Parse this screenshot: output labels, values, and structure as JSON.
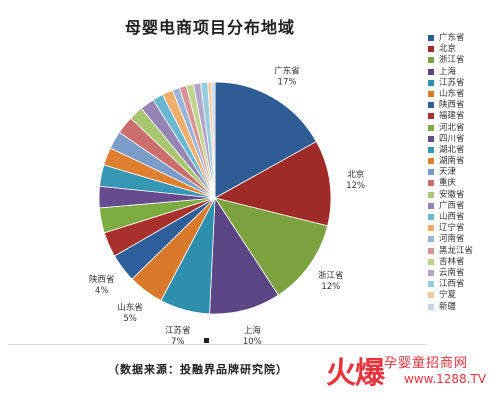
{
  "chart_data": {
    "type": "pie",
    "title": "母婴电商项目分布地域",
    "categories": [
      "广东省",
      "北京",
      "浙江省",
      "上海",
      "江苏省",
      "山东省",
      "陕西省",
      "福建省",
      "河北省",
      "四川省",
      "湖北省",
      "湖南省",
      "天津",
      "重庆",
      "安徽省",
      "广西省",
      "山西省",
      "辽宁省",
      "河南省",
      "黑龙江省",
      "吉林省",
      "云南省",
      "江西省",
      "宁夏",
      "新疆"
    ],
    "values": [
      17,
      12,
      12,
      10,
      7,
      5,
      4,
      3.5,
      3.5,
      3,
      3,
      2.5,
      2.5,
      2.5,
      2,
      2,
      1.5,
      1.5,
      1,
      1,
      1,
      1,
      1,
      0.5,
      0.5
    ],
    "slice_labels": [
      {
        "name": "广东省",
        "pct": "17%"
      },
      {
        "name": "北京",
        "pct": "12%"
      },
      {
        "name": "浙江省",
        "pct": "12%"
      },
      {
        "name": "上海",
        "pct": "10%"
      },
      {
        "name": "江苏省",
        "pct": "7%"
      },
      {
        "name": "山东省",
        "pct": "5%"
      },
      {
        "name": "陕西省",
        "pct": "4%"
      }
    ],
    "colors": [
      "#2e5d95",
      "#9e2b27",
      "#7ba23f",
      "#5c4585",
      "#2e8fad",
      "#d9792b",
      "#2f5f9a",
      "#a8312d",
      "#7cab41",
      "#664b8e",
      "#3597b4",
      "#e07f2e",
      "#7a9cc9",
      "#cc6f6c",
      "#a7c66f",
      "#9685b4",
      "#68b8d4",
      "#f0ad6b",
      "#98b4d8",
      "#d89593",
      "#bfd58d",
      "#b3a6cc",
      "#97cde0",
      "#f7c79c",
      "#c6d5ea"
    ],
    "legend_position": "right"
  },
  "source_note": "（数据来源：投融界品牌研究院）",
  "watermark": {
    "brand": "火爆",
    "site_name": "孕婴童招商网",
    "url": "www.1288.TV"
  }
}
